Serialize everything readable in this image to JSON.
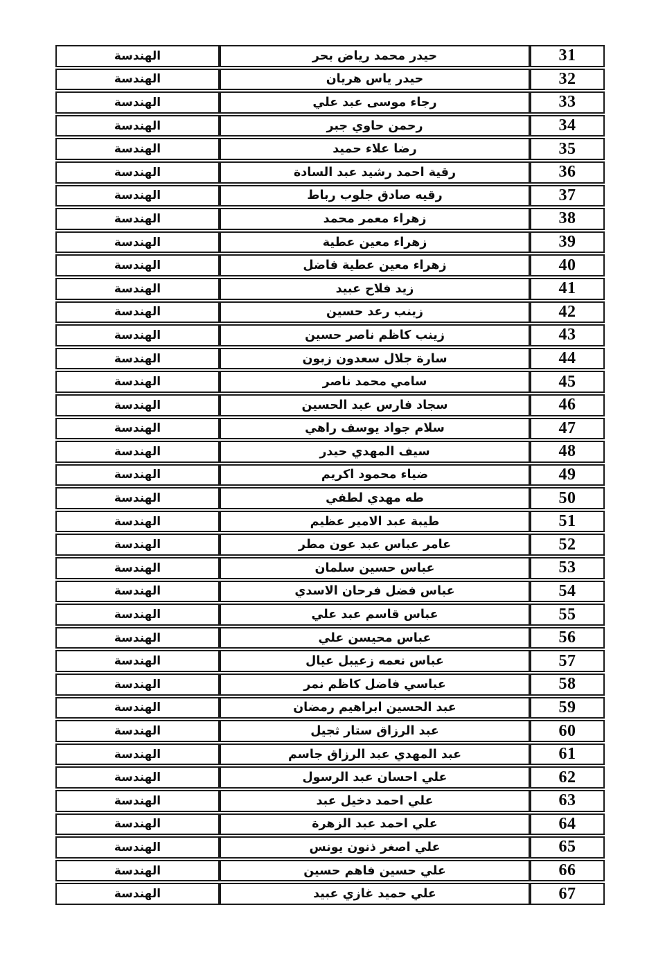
{
  "page": {
    "colors": {
      "page_bg": "#ffffff",
      "row_bg": "#ffffff",
      "department_bg": "#dce9f5",
      "border": "#1b1b1b",
      "text": "#0d0d0d"
    }
  },
  "roster": {
    "direction": "rtl",
    "department_value": "الهندسة",
    "number_range": {
      "first": "31",
      "last": "67"
    },
    "rows": [
      {
        "number": "31",
        "name": "حيدر محمد رياض بحر",
        "department": "الهندسة"
      },
      {
        "number": "32",
        "name": "حيدر ياس هريان",
        "department": "الهندسة"
      },
      {
        "number": "33",
        "name": "رجاء موسى عبد علي",
        "department": "الهندسة"
      },
      {
        "number": "34",
        "name": "رحمن حاوي جبر",
        "department": "الهندسة"
      },
      {
        "number": "35",
        "name": "رضا علاء حميد",
        "department": "الهندسة"
      },
      {
        "number": "36",
        "name": "رقية احمد رشيد عبد السادة",
        "department": "الهندسة"
      },
      {
        "number": "37",
        "name": "رقيه صادق جلوب رباط",
        "department": "الهندسة"
      },
      {
        "number": "38",
        "name": "زهراء معمر محمد",
        "department": "الهندسة"
      },
      {
        "number": "39",
        "name": "زهراء معين عطية",
        "department": "الهندسة"
      },
      {
        "number": "40",
        "name": "زهراء معين عطية فاضل",
        "department": "الهندسة"
      },
      {
        "number": "41",
        "name": "زيد فلاح عبيد",
        "department": "الهندسة"
      },
      {
        "number": "42",
        "name": "زينب رعد حسين",
        "department": "الهندسة"
      },
      {
        "number": "43",
        "name": "زينب كاظم ناصر حسين",
        "department": "الهندسة"
      },
      {
        "number": "44",
        "name": "سارة جلال سعدون زبون",
        "department": "الهندسة"
      },
      {
        "number": "45",
        "name": "سامي محمد ناصر",
        "department": "الهندسة"
      },
      {
        "number": "46",
        "name": "سجاد فارس عبد الحسين",
        "department": "الهندسة"
      },
      {
        "number": "47",
        "name": "سلام جواد يوسف راهي",
        "department": "الهندسة"
      },
      {
        "number": "48",
        "name": "سيف المهدي حيدر",
        "department": "الهندسة"
      },
      {
        "number": "49",
        "name": "ضياء محمود اكريم",
        "department": "الهندسة"
      },
      {
        "number": "50",
        "name": "طه مهدي لطفي",
        "department": "الهندسة"
      },
      {
        "number": "51",
        "name": "طيبة عبد الامير عظيم",
        "department": "الهندسة"
      },
      {
        "number": "52",
        "name": "عامر عباس عبد عون مطر",
        "department": "الهندسة"
      },
      {
        "number": "53",
        "name": "عباس حسين سلمان",
        "department": "الهندسة"
      },
      {
        "number": "54",
        "name": "عباس فضل فرحان الاسدي",
        "department": "الهندسة"
      },
      {
        "number": "55",
        "name": "عباس قاسم عبد علي",
        "department": "الهندسة"
      },
      {
        "number": "56",
        "name": "عباس محيسن علي",
        "department": "الهندسة"
      },
      {
        "number": "57",
        "name": "عباس نعمه زعيبل عيال",
        "department": "الهندسة"
      },
      {
        "number": "58",
        "name": "عباسي فاضل كاظم نمر",
        "department": "الهندسة"
      },
      {
        "number": "59",
        "name": "عبد الحسين ابراهيم رمضان",
        "department": "الهندسة"
      },
      {
        "number": "60",
        "name": "عبد الرزاق ستار ثجيل",
        "department": "الهندسة"
      },
      {
        "number": "61",
        "name": "عبد المهدي عبد الرزاق جاسم",
        "department": "الهندسة"
      },
      {
        "number": "62",
        "name": "علي احسان عبد الرسول",
        "department": "الهندسة"
      },
      {
        "number": "63",
        "name": "علي احمد دخيل عبد",
        "department": "الهندسة"
      },
      {
        "number": "64",
        "name": "علي احمد عبد الزهرة",
        "department": "الهندسة"
      },
      {
        "number": "65",
        "name": "علي اصغر ذنون يونس",
        "department": "الهندسة"
      },
      {
        "number": "66",
        "name": "علي حسين فاهم حسين",
        "department": "الهندسة"
      },
      {
        "number": "67",
        "name": "علي حميد غازي عبيد",
        "department": "الهندسة"
      }
    ]
  }
}
